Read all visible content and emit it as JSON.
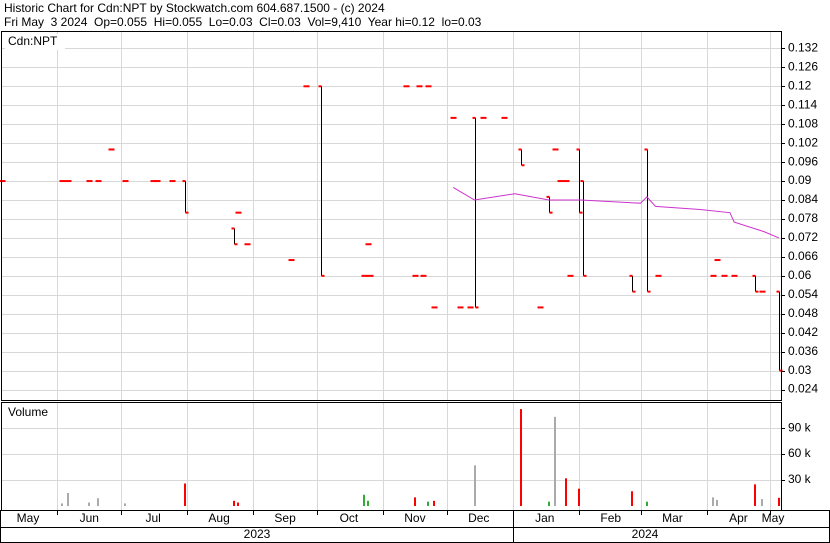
{
  "chart_data": [
    {
      "type": "ohlc",
      "title": "Historic Chart for Cdn:NPT by Stockwatch.com 604.687.1500 - (c) 2024",
      "subtitle": "Fri May  3 2024  Op=0.055  Hi=0.055  Lo=0.03  Cl=0.03  Vol=9,410  Year hi=0.12  lo=0.03",
      "label": "Cdn:NPT",
      "x": [
        5,
        33,
        36,
        46,
        50,
        56,
        63,
        76,
        78,
        85,
        91,
        114,
        116,
        120,
        141,
        148,
        155,
        175,
        177,
        178,
        195,
        199,
        201,
        203,
        205,
        208,
        217,
        220,
        225,
        227,
        231,
        241,
        249,
        258,
        262,
        265,
        267,
        270,
        272,
        276,
        278,
        301,
        308,
        313,
        339,
        341,
        344,
        349,
        359,
        362,
        370
      ],
      "open": [
        0.09,
        0.09,
        0.09,
        0.09,
        0.09,
        0.1,
        0.09,
        0.09,
        0.09,
        0.09,
        0.09,
        0.075,
        0.08,
        0.07,
        0.065,
        0.12,
        0.12,
        0.06,
        0.07,
        0.06,
        0.12,
        0.06,
        0.12,
        0.06,
        0.12,
        0.05,
        0.11,
        0.05,
        0.05,
        0.11,
        0.11,
        0.11,
        0.1,
        0.05,
        0.085,
        0.1,
        0.09,
        0.09,
        0.06,
        0.1,
        0.09,
        0.06,
        0.1,
        0.06,
        0.06,
        0.065,
        0.06,
        0.06,
        0.06,
        0.055,
        0.055
      ],
      "high": [
        0.09,
        0.09,
        0.09,
        0.09,
        0.09,
        0.1,
        0.09,
        0.09,
        0.09,
        0.09,
        0.09,
        0.075,
        0.08,
        0.07,
        0.065,
        0.12,
        0.12,
        0.06,
        0.07,
        0.06,
        0.12,
        0.06,
        0.12,
        0.06,
        0.12,
        0.05,
        0.11,
        0.05,
        0.05,
        0.11,
        0.11,
        0.11,
        0.1,
        0.05,
        0.085,
        0.1,
        0.09,
        0.09,
        0.06,
        0.1,
        0.09,
        0.06,
        0.1,
        0.06,
        0.06,
        0.065,
        0.06,
        0.06,
        0.06,
        0.055,
        0.055
      ],
      "low": [
        0.09,
        0.09,
        0.09,
        0.09,
        0.09,
        0.1,
        0.09,
        0.09,
        0.09,
        0.09,
        0.08,
        0.07,
        0.08,
        0.07,
        0.065,
        0.12,
        0.06,
        0.06,
        0.07,
        0.06,
        0.12,
        0.06,
        0.12,
        0.06,
        0.12,
        0.05,
        0.11,
        0.05,
        0.05,
        0.05,
        0.11,
        0.11,
        0.095,
        0.05,
        0.08,
        0.1,
        0.09,
        0.09,
        0.06,
        0.08,
        0.06,
        0.055,
        0.055,
        0.06,
        0.06,
        0.065,
        0.06,
        0.06,
        0.055,
        0.055,
        0.03
      ],
      "close": [
        0.09,
        0.09,
        0.09,
        0.09,
        0.09,
        0.1,
        0.09,
        0.09,
        0.09,
        0.09,
        0.08,
        0.07,
        0.08,
        0.07,
        0.065,
        0.12,
        0.06,
        0.06,
        0.07,
        0.06,
        0.12,
        0.06,
        0.12,
        0.06,
        0.12,
        0.05,
        0.11,
        0.05,
        0.05,
        0.05,
        0.11,
        0.11,
        0.095,
        0.05,
        0.08,
        0.1,
        0.09,
        0.09,
        0.06,
        0.08,
        0.06,
        0.055,
        0.055,
        0.06,
        0.06,
        0.065,
        0.06,
        0.06,
        0.055,
        0.055,
        0.03
      ],
      "bar_color": "#000000",
      "tick_color": "#ff0000",
      "ma": {
        "color": "#cc33cc",
        "x": [
          217,
          227,
          246,
          262,
          277,
          305,
          308,
          312,
          333,
          347,
          349,
          363,
          370
        ],
        "values": [
          0.088,
          0.084,
          0.086,
          0.084,
          0.084,
          0.083,
          0.085,
          0.082,
          0.081,
          0.08,
          0.077,
          0.074,
          0.072
        ]
      },
      "xlim": [
        5,
        371
      ],
      "ylim": [
        0.0207,
        0.1375
      ],
      "yticks": [
        0.024,
        0.03,
        0.036,
        0.042,
        0.048,
        0.054,
        0.06,
        0.066,
        0.072,
        0.078,
        0.084,
        0.09,
        0.096,
        0.102,
        0.108,
        0.114,
        0.12,
        0.126,
        0.132
      ],
      "grid": true
    },
    {
      "type": "bar",
      "label": "Volume",
      "x": [
        33,
        36,
        46,
        50,
        63,
        91,
        114,
        116,
        175,
        177,
        199,
        205,
        208,
        227,
        249,
        262,
        265,
        270,
        276,
        301,
        308,
        339,
        341,
        359,
        362,
        370
      ],
      "values": [
        3000,
        15000,
        4000,
        9000,
        3000,
        26000,
        6000,
        4000,
        13000,
        6000,
        10000,
        5000,
        6000,
        47000,
        112000,
        5000,
        103000,
        32000,
        20000,
        17000,
        5000,
        10000,
        7000,
        25000,
        8000,
        9410
      ],
      "colors": [
        "#aaaaaa",
        "#aaaaaa",
        "#aaaaaa",
        "#aaaaaa",
        "#aaaaaa",
        "#ff0000",
        "#ff0000",
        "#ff0000",
        "#33aa33",
        "#33aa33",
        "#ff0000",
        "#33aa33",
        "#ff0000",
        "#aaaaaa",
        "#ff0000",
        "#33aa33",
        "#aaaaaa",
        "#ff0000",
        "#ff0000",
        "#ff0000",
        "#33aa33",
        "#aaaaaa",
        "#aaaaaa",
        "#ff0000",
        "#aaaaaa",
        "#ff0000"
      ],
      "xlim": [
        5,
        371
      ],
      "ylim": [
        0,
        119000
      ],
      "yticks": [
        {
          "value": 30000,
          "label": "30 k"
        },
        {
          "value": 60000,
          "label": "60 k"
        },
        {
          "value": 90000,
          "label": "90 k"
        }
      ],
      "xticks": [
        {
          "value": 0,
          "label": "May"
        },
        {
          "value": 31,
          "label": "Jun"
        },
        {
          "value": 61,
          "label": "Jul"
        },
        {
          "value": 92,
          "label": "Aug"
        },
        {
          "value": 123,
          "label": "Sep"
        },
        {
          "value": 153,
          "label": "Oct"
        },
        {
          "value": 184,
          "label": "Nov"
        },
        {
          "value": 214,
          "label": "Dec"
        },
        {
          "value": 245,
          "label": "Jan"
        },
        {
          "value": 276,
          "label": "Feb"
        },
        {
          "value": 305,
          "label": "Mar"
        },
        {
          "value": 336,
          "label": "Apr"
        },
        {
          "value": 366,
          "label": "May"
        }
      ],
      "years": [
        "2023",
        "2024"
      ],
      "grid": true
    }
  ]
}
